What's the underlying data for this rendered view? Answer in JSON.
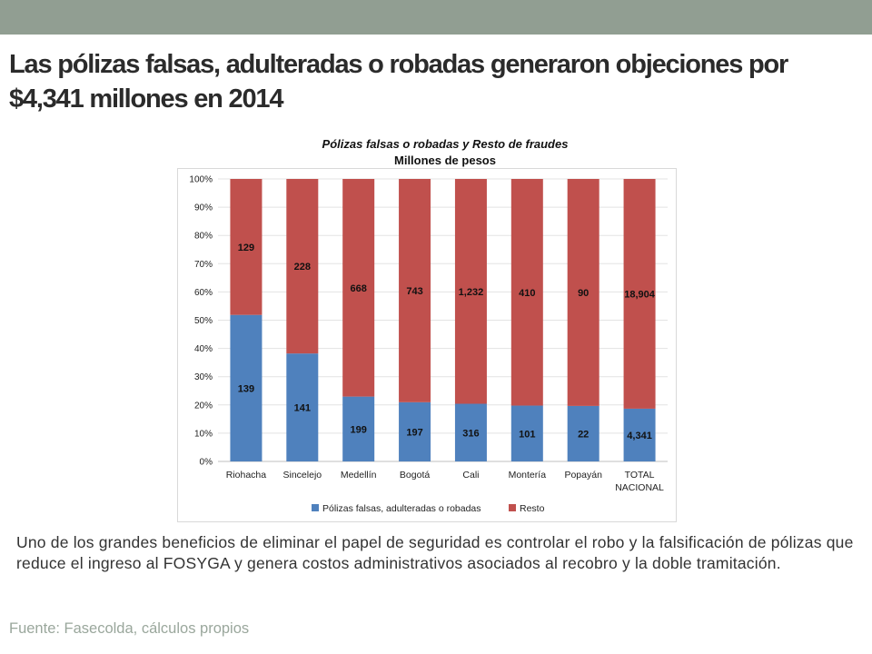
{
  "slide": {
    "title": "Las pólizas falsas, adulteradas o robadas generaron objeciones por $4,341 millones en 2014",
    "body": "Uno de los grandes beneficios de eliminar el papel de seguridad es controlar el robo y la falsificación de pólizas que reduce el ingreso al FOSYGA y genera costos administrativos asociados al recobro y la doble tramitación.",
    "source": "Fuente: Fasecolda, cálculos propios"
  },
  "colors": {
    "header_bar": "#919e92",
    "series_polizas": "#4f81bd",
    "series_resto": "#c0504d"
  },
  "chart_data": {
    "type": "bar",
    "stacked": "percent",
    "title": "Pólizas falsas o robadas y Resto de fraudes",
    "subtitle": "Millones de pesos",
    "categories": [
      [
        "Riohacha"
      ],
      [
        "Sincelejo"
      ],
      [
        "Medellín"
      ],
      [
        "Bogotá"
      ],
      [
        "Cali"
      ],
      [
        "Montería"
      ],
      [
        "Popayán"
      ],
      [
        "TOTAL",
        "NACIONAL"
      ]
    ],
    "series": [
      {
        "name": "Pólizas falsas, adulteradas o robadas",
        "color": "#4f81bd",
        "values": [
          139,
          141,
          199,
          197,
          316,
          101,
          22,
          4341
        ],
        "labels": [
          "139",
          "141",
          "199",
          "197",
          "316",
          "101",
          "22",
          "4,341"
        ]
      },
      {
        "name": "Resto",
        "color": "#c0504d",
        "values": [
          129,
          228,
          668,
          743,
          1232,
          410,
          90,
          18904
        ],
        "labels": [
          "129",
          "228",
          "668",
          "743",
          "1,232",
          "410",
          "90",
          "18,904"
        ]
      }
    ],
    "yticks": [
      "0%",
      "10%",
      "20%",
      "30%",
      "40%",
      "50%",
      "60%",
      "70%",
      "80%",
      "90%",
      "100%"
    ],
    "ylim": [
      0,
      100
    ],
    "grid": true,
    "legend_position": "bottom"
  }
}
